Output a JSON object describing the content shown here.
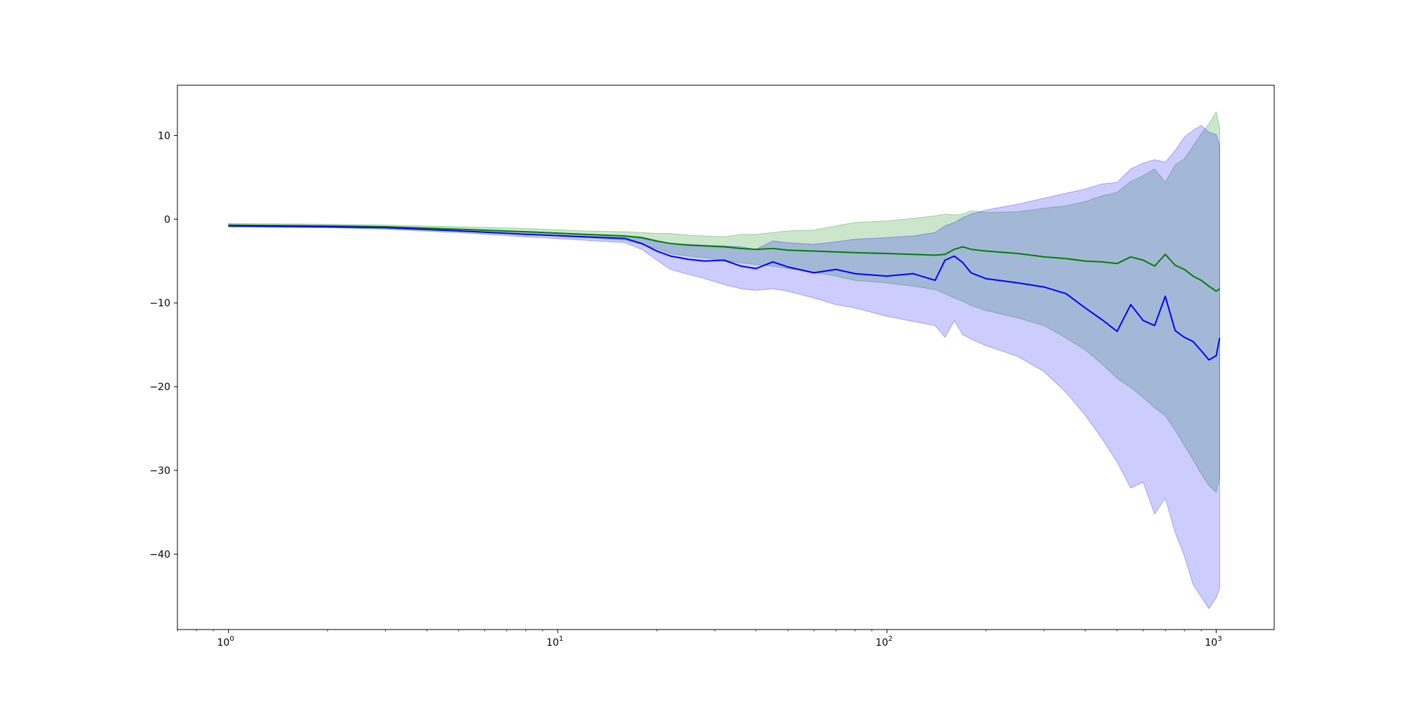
{
  "chart_data": {
    "type": "line",
    "title": "",
    "xlabel": "",
    "ylabel": "",
    "xscale": "log",
    "xlim": [
      0.7,
      1500
    ],
    "ylim": [
      -49,
      16
    ],
    "grid": false,
    "x_ticks": [
      {
        "value": 1,
        "base": "10",
        "exp": "0"
      },
      {
        "value": 10,
        "base": "10",
        "exp": "1"
      },
      {
        "value": 100,
        "base": "10",
        "exp": "2"
      },
      {
        "value": 1000,
        "base": "10",
        "exp": "3"
      }
    ],
    "y_ticks": [
      {
        "value": 10,
        "label": "10"
      },
      {
        "value": 0,
        "label": "0"
      },
      {
        "value": -10,
        "label": "−10"
      },
      {
        "value": -20,
        "label": "−20"
      },
      {
        "value": -30,
        "label": "−30"
      },
      {
        "value": -40,
        "label": "−40"
      }
    ],
    "series": [
      {
        "color": "#008000",
        "band_color": "#008000",
        "x": [
          1,
          2,
          3,
          5,
          8,
          12,
          16,
          18,
          20,
          22,
          25,
          28,
          32,
          36,
          40,
          45,
          50,
          60,
          70,
          80,
          100,
          120,
          140,
          150,
          160,
          170,
          180,
          200,
          250,
          300,
          350,
          400,
          450,
          500,
          550,
          600,
          650,
          700,
          750,
          800,
          850,
          900,
          950,
          1000,
          1024
        ],
        "y": [
          -0.7,
          -0.8,
          -0.9,
          -1.2,
          -1.5,
          -1.8,
          -2.0,
          -2.2,
          -2.6,
          -2.9,
          -3.1,
          -3.2,
          -3.3,
          -3.5,
          -3.6,
          -3.5,
          -3.7,
          -3.8,
          -3.9,
          -4.0,
          -4.1,
          -4.2,
          -4.3,
          -4.2,
          -3.6,
          -3.3,
          -3.6,
          -3.8,
          -4.1,
          -4.5,
          -4.7,
          -5.0,
          -5.1,
          -5.3,
          -4.5,
          -4.9,
          -5.6,
          -4.2,
          -5.5,
          -6.0,
          -6.8,
          -7.3,
          -8.0,
          -8.6,
          -8.3
        ],
        "upper": [
          -0.5,
          -0.6,
          -0.7,
          -0.9,
          -1.1,
          -1.4,
          -1.5,
          -1.6,
          -1.7,
          -1.7,
          -1.9,
          -2.0,
          -2.1,
          -1.8,
          -1.8,
          -1.6,
          -1.4,
          -1.3,
          -0.8,
          -0.4,
          -0.2,
          0.1,
          0.4,
          0.6,
          0.5,
          0.6,
          1.0,
          0.8,
          0.9,
          1.3,
          1.6,
          2.1,
          2.8,
          3.2,
          4.5,
          5.2,
          6.0,
          4.4,
          6.5,
          7.2,
          8.7,
          10.2,
          11.4,
          12.8,
          11.0
        ],
        "lower": [
          -0.9,
          -1.0,
          -1.1,
          -1.4,
          -1.8,
          -2.2,
          -2.5,
          -3.0,
          -3.5,
          -4.1,
          -4.4,
          -4.6,
          -4.9,
          -5.2,
          -5.4,
          -5.6,
          -5.9,
          -6.3,
          -6.8,
          -7.3,
          -7.6,
          -8.0,
          -8.4,
          -8.9,
          -9.4,
          -9.8,
          -10.3,
          -10.9,
          -11.8,
          -12.7,
          -14.2,
          -15.6,
          -17.3,
          -19.0,
          -20.1,
          -21.3,
          -22.5,
          -23.5,
          -25.2,
          -27.0,
          -28.7,
          -30.4,
          -31.8,
          -32.6,
          -30.8
        ]
      },
      {
        "color": "#0000ff",
        "band_color": "#0000ff",
        "x": [
          1,
          2,
          3,
          5,
          8,
          12,
          16,
          18,
          20,
          22,
          25,
          28,
          32,
          36,
          40,
          45,
          50,
          60,
          70,
          80,
          100,
          120,
          140,
          150,
          160,
          170,
          180,
          200,
          250,
          300,
          350,
          400,
          450,
          500,
          550,
          600,
          650,
          700,
          750,
          800,
          850,
          900,
          950,
          1000,
          1024
        ],
        "y": [
          -0.8,
          -0.9,
          -1.0,
          -1.4,
          -1.8,
          -2.1,
          -2.3,
          -2.9,
          -3.8,
          -4.4,
          -4.8,
          -5.0,
          -4.9,
          -5.6,
          -5.9,
          -5.1,
          -5.7,
          -6.4,
          -6.0,
          -6.5,
          -6.8,
          -6.5,
          -7.3,
          -4.9,
          -4.4,
          -5.2,
          -6.4,
          -7.1,
          -7.6,
          -8.1,
          -8.9,
          -10.6,
          -12.0,
          -13.4,
          -10.2,
          -12.1,
          -12.7,
          -9.2,
          -13.3,
          -14.1,
          -14.6,
          -15.7,
          -16.8,
          -16.3,
          -14.2
        ],
        "upper": [
          -0.7,
          -0.8,
          -0.9,
          -1.2,
          -1.5,
          -1.8,
          -2.0,
          -2.3,
          -2.7,
          -2.9,
          -3.0,
          -3.1,
          -3.2,
          -3.3,
          -3.6,
          -2.6,
          -2.8,
          -3.0,
          -2.7,
          -2.4,
          -2.2,
          -2.0,
          -1.6,
          -0.8,
          -0.4,
          0.2,
          0.6,
          1.1,
          1.8,
          2.5,
          3.1,
          3.6,
          4.2,
          4.4,
          6.0,
          6.7,
          7.1,
          6.8,
          8.2,
          9.8,
          10.6,
          11.2,
          10.4,
          10.1,
          8.8
        ],
        "lower": [
          -0.9,
          -1.0,
          -1.2,
          -1.6,
          -2.1,
          -2.5,
          -2.8,
          -3.6,
          -4.9,
          -6.0,
          -6.6,
          -7.1,
          -7.8,
          -8.3,
          -8.5,
          -8.3,
          -8.6,
          -9.4,
          -10.2,
          -10.6,
          -11.6,
          -12.2,
          -12.7,
          -14.1,
          -12.1,
          -13.8,
          -14.3,
          -15.1,
          -16.4,
          -18.2,
          -20.7,
          -23.4,
          -26.2,
          -29.0,
          -32.1,
          -31.4,
          -35.2,
          -33.3,
          -37.4,
          -40.2,
          -43.6,
          -45.1,
          -46.5,
          -45.2,
          -44.1
        ]
      }
    ]
  }
}
